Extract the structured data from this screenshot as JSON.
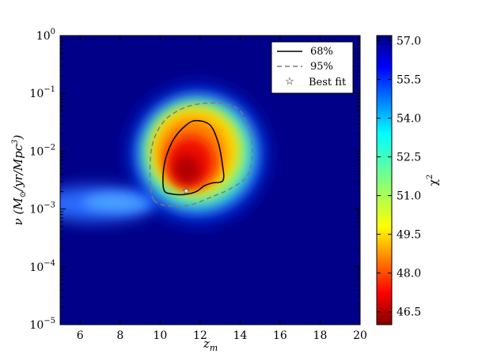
{
  "chart_data": {
    "type": "heatmap",
    "title": "",
    "xlabel": "z_m",
    "ylabel": "ν (M⊙/yr/Mpc³)",
    "xlim": [
      5,
      20
    ],
    "ylim_log10": [
      -5,
      0
    ],
    "x_ticks": [
      6,
      8,
      10,
      12,
      14,
      16,
      18,
      20
    ],
    "x_tick_labels": [
      "6",
      "8",
      "10",
      "12",
      "14",
      "16",
      "18",
      "20"
    ],
    "y_ticks_log10": [
      -5,
      -4,
      -3,
      -2,
      -1,
      0
    ],
    "y_tick_labels": [
      {
        "base": "10",
        "exp": "−5"
      },
      {
        "base": "10",
        "exp": "−4"
      },
      {
        "base": "10",
        "exp": "−3"
      },
      {
        "base": "10",
        "exp": "−2"
      },
      {
        "base": "10",
        "exp": "−1"
      },
      {
        "base": "10",
        "exp": "0"
      }
    ],
    "colorbar": {
      "label": "χ²",
      "range": [
        46.0,
        57.2
      ],
      "ticks": [
        46.5,
        48.0,
        49.5,
        51.0,
        52.5,
        54.0,
        55.5,
        57.0
      ],
      "tick_labels": [
        "46.5",
        "48.0",
        "49.5",
        "51.0",
        "52.5",
        "54.0",
        "55.5",
        "57.0"
      ],
      "colormap": "jet_reversed"
    },
    "background_chi2": 57.2,
    "chi2_minimum": 46.0,
    "best_fit": {
      "z_m": 11.3,
      "log10_nu": -2.7
    },
    "contour_68": [
      {
        "z": 10.2,
        "log10_nu": -2.68
      },
      {
        "z": 10.15,
        "log10_nu": -2.4
      },
      {
        "z": 10.3,
        "log10_nu": -2.1
      },
      {
        "z": 10.7,
        "log10_nu": -1.78
      },
      {
        "z": 11.3,
        "log10_nu": -1.55
      },
      {
        "z": 11.8,
        "log10_nu": -1.47
      },
      {
        "z": 12.5,
        "log10_nu": -1.55
      },
      {
        "z": 12.9,
        "log10_nu": -1.85
      },
      {
        "z": 13.1,
        "log10_nu": -2.2
      },
      {
        "z": 13.15,
        "log10_nu": -2.5
      },
      {
        "z": 12.6,
        "log10_nu": -2.55
      },
      {
        "z": 12.2,
        "log10_nu": -2.6
      },
      {
        "z": 11.8,
        "log10_nu": -2.7
      },
      {
        "z": 11.2,
        "log10_nu": -2.75
      },
      {
        "z": 10.6,
        "log10_nu": -2.74
      }
    ],
    "contour_95": [
      {
        "z": 9.7,
        "log10_nu": -2.85
      },
      {
        "z": 9.5,
        "log10_nu": -2.5
      },
      {
        "z": 9.6,
        "log10_nu": -1.9
      },
      {
        "z": 10.2,
        "log10_nu": -1.48
      },
      {
        "z": 11.2,
        "log10_nu": -1.25
      },
      {
        "z": 12.3,
        "log10_nu": -1.17
      },
      {
        "z": 13.5,
        "log10_nu": -1.2
      },
      {
        "z": 14.2,
        "log10_nu": -1.4
      },
      {
        "z": 14.6,
        "log10_nu": -1.9
      },
      {
        "z": 14.4,
        "log10_nu": -2.4
      },
      {
        "z": 13.5,
        "log10_nu": -2.65
      },
      {
        "z": 12.5,
        "log10_nu": -2.8
      },
      {
        "z": 11.5,
        "log10_nu": -2.93
      },
      {
        "z": 10.5,
        "log10_nu": -2.95
      }
    ],
    "legend": {
      "placement": "top-right",
      "entries": [
        {
          "label": "68%",
          "style": "solid"
        },
        {
          "label": "95%",
          "style": "dashed"
        },
        {
          "label": "Best fit",
          "style": "star"
        }
      ]
    },
    "grid": false
  }
}
